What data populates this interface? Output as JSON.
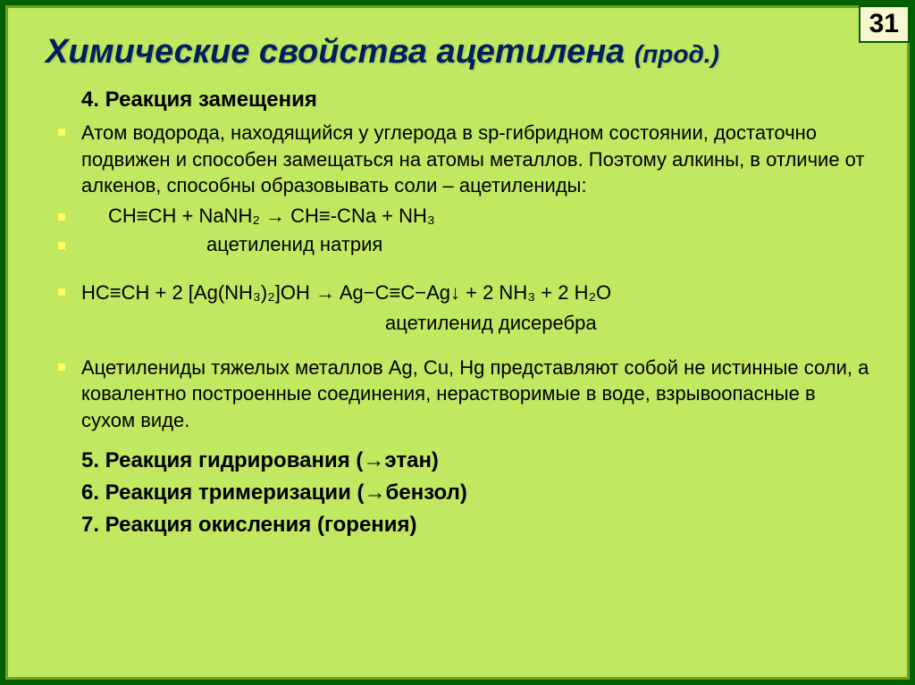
{
  "page_number": "31",
  "title_main": "Химические свойства ацетилена ",
  "title_cont": "(прод.)",
  "section4": "4. Реакция  замещения",
  "para1": "Атом водорода, находящийся у углерода в sp-гибридном состоянии, достаточно подвижен и способен замещаться на атомы металлов. Поэтому алкины, в отличие от алкенов, способны образовывать соли – ацетилениды:",
  "formula1": "CH≡CH   +   NaNH₂     →      CH≡-CNa   +   NH₃",
  "label1": "ацетиленид натрия",
  "formula2": "HC≡CH   +   2 [Ag(NH₃)₂]OH    →    Ag−C≡C−Ag↓   +   2 NH₃   +   2 H₂O",
  "label2": "ацетиленид дисеребра",
  "para2": "Ацетилениды тяжелых металлов Ag, Cu, Hg представляют собой не истинные соли, а ковалентно построенные соединения, нерастворимые в воде, взрывоопасные в сухом виде.",
  "section5": "5. Реакция  гидрирования   (→этан)",
  "section6": "6. Реакция тримеризации (→бензол)",
  "section7": "7. Реакция окисления (горения)",
  "colors": {
    "outer_border": "#006000",
    "slide_bg": "#c0e860",
    "inner_border": "#70a020",
    "title_color": "#002060",
    "text_color": "#000000",
    "bullet_color": "#ffff60",
    "pagenum_bg": "#f8f8d0"
  },
  "fonts": {
    "title_size_pt": 28,
    "body_size_pt": 16,
    "header_size_pt": 18
  }
}
